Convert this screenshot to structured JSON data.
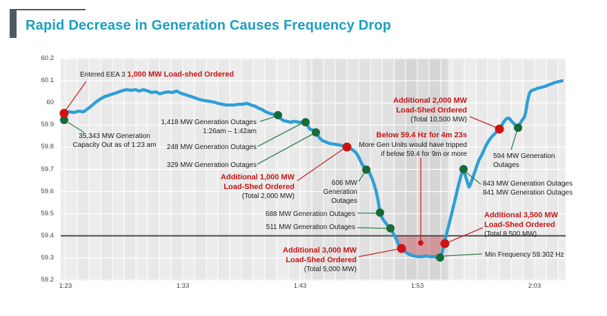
{
  "title": "Rapid Decrease in Generation Causes Frequency Drop",
  "colors": {
    "title_text": "#1a9fc0",
    "accent_bar": "#4d5a63",
    "curve": "#2e9fd6",
    "red": "#c81414",
    "red_dot": "#cf1212",
    "green_dot": "#186a38",
    "green_line": "#2e7d46",
    "red_line": "#cc2222",
    "threshold": "#4c4c4c",
    "below_region_fill": "rgba(198,60,68,0.40)",
    "plot_bg": "#ececec"
  },
  "chart_data": {
    "type": "line",
    "title": "Rapid Decrease in Generation Causes Frequency Drop",
    "xlabel": "",
    "ylabel": "",
    "x_time_origin": "1:23",
    "x_minutes_span": [
      0,
      42.6
    ],
    "ylim": [
      59.2,
      60.2
    ],
    "grid": true,
    "legend": false,
    "x_ticks": [
      {
        "label": "1:23",
        "t": 0
      },
      {
        "label": "1:33",
        "t": 10
      },
      {
        "label": "1:43",
        "t": 20
      },
      {
        "label": "1:53",
        "t": 30
      },
      {
        "label": "2:03",
        "t": 40
      }
    ],
    "y_ticks": [
      {
        "label": "60.2",
        "value": 60.2
      },
      {
        "label": "60.1",
        "value": 60.1
      },
      {
        "label": "60",
        "value": 60.0
      },
      {
        "label": "59.9",
        "value": 59.9
      },
      {
        "label": "59.8",
        "value": 59.8
      },
      {
        "label": "59.7",
        "value": 59.7
      },
      {
        "label": "59.6",
        "value": 59.6
      },
      {
        "label": "59.5",
        "value": 59.5
      },
      {
        "label": "59.4",
        "value": 59.4
      },
      {
        "label": "59.3",
        "value": 59.3
      },
      {
        "label": "59.2",
        "value": 59.2
      }
    ],
    "threshold_hz": 59.4,
    "below_region": {
      "t_start": 28.2,
      "t_end": 32.45
    },
    "min_frequency_hz": 59.302,
    "series": [
      {
        "name": "System Frequency (Hz)",
        "points": [
          [
            -0.18,
            59.957
          ],
          [
            0.29,
            59.96
          ],
          [
            0.71,
            59.957
          ],
          [
            1.12,
            59.963
          ],
          [
            1.53,
            59.96
          ],
          [
            1.88,
            59.973
          ],
          [
            2.24,
            59.988
          ],
          [
            2.59,
            60.004
          ],
          [
            3.0,
            60.019
          ],
          [
            3.35,
            60.029
          ],
          [
            3.71,
            60.035
          ],
          [
            4.06,
            60.041
          ],
          [
            4.41,
            60.047
          ],
          [
            4.76,
            60.054
          ],
          [
            5.18,
            60.06
          ],
          [
            5.59,
            60.057
          ],
          [
            5.94,
            60.06
          ],
          [
            6.29,
            60.054
          ],
          [
            6.65,
            60.06
          ],
          [
            7.0,
            60.054
          ],
          [
            7.35,
            60.047
          ],
          [
            7.71,
            60.05
          ],
          [
            8.06,
            60.041
          ],
          [
            8.41,
            60.047
          ],
          [
            8.76,
            60.05
          ],
          [
            9.12,
            60.047
          ],
          [
            9.47,
            60.054
          ],
          [
            9.82,
            60.044
          ],
          [
            10.18,
            60.038
          ],
          [
            10.53,
            60.032
          ],
          [
            10.88,
            60.026
          ],
          [
            11.24,
            60.019
          ],
          [
            11.59,
            60.013
          ],
          [
            11.94,
            60.01
          ],
          [
            12.29,
            60.007
          ],
          [
            12.65,
            60.004
          ],
          [
            13.0,
            59.998
          ],
          [
            13.35,
            59.994
          ],
          [
            13.71,
            59.991
          ],
          [
            14.06,
            59.991
          ],
          [
            14.41,
            59.991
          ],
          [
            14.76,
            59.994
          ],
          [
            15.12,
            59.994
          ],
          [
            15.47,
            59.998
          ],
          [
            15.82,
            59.991
          ],
          [
            16.18,
            59.985
          ],
          [
            16.47,
            59.976
          ],
          [
            16.76,
            59.97
          ],
          [
            17.06,
            59.96
          ],
          [
            17.35,
            59.954
          ],
          [
            17.71,
            59.948
          ],
          [
            18.12,
            59.945
          ],
          [
            18.35,
            59.929
          ],
          [
            18.59,
            59.92
          ],
          [
            18.88,
            59.917
          ],
          [
            19.18,
            59.913
          ],
          [
            19.53,
            59.917
          ],
          [
            19.88,
            59.913
          ],
          [
            20.18,
            59.913
          ],
          [
            20.47,
            59.913
          ],
          [
            20.65,
            59.898
          ],
          [
            20.82,
            59.882
          ],
          [
            21.0,
            59.879
          ],
          [
            21.24,
            59.873
          ],
          [
            21.35,
            59.867
          ],
          [
            21.53,
            59.851
          ],
          [
            21.71,
            59.839
          ],
          [
            21.94,
            59.829
          ],
          [
            22.24,
            59.823
          ],
          [
            22.53,
            59.817
          ],
          [
            22.88,
            59.814
          ],
          [
            23.24,
            59.811
          ],
          [
            23.53,
            59.808
          ],
          [
            23.76,
            59.804
          ],
          [
            24.0,
            59.801
          ],
          [
            24.29,
            59.795
          ],
          [
            24.53,
            59.786
          ],
          [
            24.76,
            59.776
          ],
          [
            24.94,
            59.761
          ],
          [
            25.12,
            59.742
          ],
          [
            25.29,
            59.723
          ],
          [
            25.47,
            59.711
          ],
          [
            25.65,
            59.702
          ],
          [
            25.76,
            59.699
          ],
          [
            25.94,
            59.683
          ],
          [
            26.12,
            59.661
          ],
          [
            26.29,
            59.636
          ],
          [
            26.47,
            59.605
          ],
          [
            26.65,
            59.561
          ],
          [
            26.82,
            59.505
          ],
          [
            26.94,
            59.487
          ],
          [
            27.12,
            59.471
          ],
          [
            27.29,
            59.459
          ],
          [
            27.47,
            59.446
          ],
          [
            27.71,
            59.434
          ],
          [
            27.88,
            59.418
          ],
          [
            28.06,
            59.399
          ],
          [
            28.24,
            59.381
          ],
          [
            28.41,
            59.359
          ],
          [
            28.59,
            59.346
          ],
          [
            28.71,
            59.34
          ],
          [
            28.88,
            59.331
          ],
          [
            29.12,
            59.322
          ],
          [
            29.35,
            59.315
          ],
          [
            29.71,
            59.309
          ],
          [
            30.06,
            59.306
          ],
          [
            30.41,
            59.306
          ],
          [
            30.76,
            59.309
          ],
          [
            31.12,
            59.306
          ],
          [
            31.47,
            59.306
          ],
          [
            31.71,
            59.303
          ],
          [
            31.94,
            59.302
          ],
          [
            32.12,
            59.324
          ],
          [
            32.24,
            59.352
          ],
          [
            32.35,
            59.377
          ],
          [
            32.47,
            59.402
          ],
          [
            32.59,
            59.43
          ],
          [
            32.76,
            59.464
          ],
          [
            32.94,
            59.502
          ],
          [
            33.12,
            59.542
          ],
          [
            33.29,
            59.579
          ],
          [
            33.47,
            59.62
          ],
          [
            33.65,
            59.657
          ],
          [
            33.82,
            59.688
          ],
          [
            33.94,
            59.701
          ],
          [
            34.06,
            59.679
          ],
          [
            34.18,
            59.657
          ],
          [
            34.29,
            59.638
          ],
          [
            34.41,
            59.62
          ],
          [
            34.53,
            59.632
          ],
          [
            34.71,
            59.66
          ],
          [
            34.88,
            59.685
          ],
          [
            35.06,
            59.713
          ],
          [
            35.24,
            59.741
          ],
          [
            35.41,
            59.757
          ],
          [
            35.59,
            59.776
          ],
          [
            35.82,
            59.804
          ],
          [
            36.06,
            59.826
          ],
          [
            36.29,
            59.844
          ],
          [
            36.53,
            59.857
          ],
          [
            36.76,
            59.869
          ],
          [
            37.0,
            59.882
          ],
          [
            37.18,
            59.897
          ],
          [
            37.35,
            59.913
          ],
          [
            37.53,
            59.925
          ],
          [
            37.71,
            59.932
          ],
          [
            37.88,
            59.929
          ],
          [
            38.06,
            59.916
          ],
          [
            38.24,
            59.907
          ],
          [
            38.41,
            59.897
          ],
          [
            38.59,
            59.888
          ],
          [
            38.76,
            59.907
          ],
          [
            38.94,
            59.922
          ],
          [
            39.12,
            59.935
          ],
          [
            39.24,
            59.957
          ],
          [
            39.35,
            59.994
          ],
          [
            39.47,
            60.025
          ],
          [
            39.59,
            60.047
          ],
          [
            39.76,
            60.057
          ],
          [
            40.0,
            60.06
          ],
          [
            40.24,
            60.066
          ],
          [
            40.47,
            60.069
          ],
          [
            40.71,
            60.072
          ],
          [
            40.94,
            60.075
          ],
          [
            41.18,
            60.082
          ],
          [
            41.41,
            60.085
          ],
          [
            41.65,
            60.091
          ],
          [
            41.88,
            60.094
          ],
          [
            42.12,
            60.097
          ],
          [
            42.35,
            60.1
          ]
        ]
      }
    ],
    "events_red": [
      {
        "t": -0.12,
        "hz": 59.953,
        "label": "Entered EEA 3 1,000 MW Load-shed Ordered"
      },
      {
        "t": 24.0,
        "hz": 59.801,
        "label": "Additional 1,000 MW Load-Shed Ordered (Total 2,000 MW)"
      },
      {
        "t": 28.65,
        "hz": 59.343,
        "label": "Additional 3,000 MW Load-Shed Ordered (Total 5,000 MW)"
      },
      {
        "t": 30.29,
        "hz": 59.368,
        "label": "Below 59.4 Hz for 4m 23s",
        "size": "small"
      },
      {
        "t": 32.35,
        "hz": 59.365,
        "label": "Additional 3,500 MW Load-Shed Ordered (Total 8,500 MW)"
      },
      {
        "t": 37.0,
        "hz": 59.882,
        "label": "Additional 2,000 MW Load-Shed Ordered (Total 10,500 MW)"
      }
    ],
    "events_green": [
      {
        "t": -0.12,
        "hz": 59.923,
        "label": "35,343 MW Generation Capacity Out as of 1:23 am"
      },
      {
        "t": 18.12,
        "hz": 59.945,
        "label": "1,418 MW Generation Outages 1:26am – 1:42am"
      },
      {
        "t": 20.47,
        "hz": 59.913,
        "label": "248 MW Generation Outages"
      },
      {
        "t": 21.35,
        "hz": 59.867,
        "label": "329 MW Generation Outages"
      },
      {
        "t": 25.65,
        "hz": 59.699,
        "label": "606 MW Generation Outages"
      },
      {
        "t": 26.82,
        "hz": 59.505,
        "label": "688 MW Generation Outages"
      },
      {
        "t": 27.71,
        "hz": 59.434,
        "label": "511 MW Generation Outages"
      },
      {
        "t": 31.94,
        "hz": 59.302,
        "label": "Min Frequency 59.302 Hz"
      },
      {
        "t": 33.94,
        "hz": 59.701,
        "label": "843 MW Generation Outages / 841 MW Generation Outages"
      },
      {
        "t": 38.59,
        "hz": 59.888,
        "label": "594 MW Generation Outages"
      }
    ]
  },
  "annotations": {
    "a1": {
      "black": "Entered EEA 3 ",
      "red": "1,000 MW Load-shed Ordered"
    },
    "a2": {
      "l1": "35,343 MW Generation",
      "l2": "Capacity Out as of 1:23 am"
    },
    "a3": {
      "l1": "1,418 MW Generation Outages",
      "l2": "1:26am – 1:42am"
    },
    "a4": {
      "l1": "248 MW Generation Outages"
    },
    "a5": {
      "l1": "329 MW Generation Outages"
    },
    "a6": {
      "r1": "Additional 1,000 MW",
      "r2": "Load-Shed Ordered",
      "b1": "(Total 2,000 MW)"
    },
    "a7": {
      "l1": "606 MW",
      "l2": "Generation",
      "l3": "Outages"
    },
    "a8": {
      "l1": "688 MW Generation Outages"
    },
    "a9": {
      "l1": "511 MW Generation Outages"
    },
    "a10": {
      "r1": "Additional 3,000 MW",
      "r2": "Load-Shed Ordered",
      "b1": "(Total 5,000 MW)"
    },
    "a11": {
      "r1": "Below 59.4 Hz for 4m 23s",
      "b1": "More Gen Units would have tripped",
      "b2": "if below 59.4 for 9m or more"
    },
    "a12": {
      "r1": "Additional 2,000 MW",
      "r2": "Load-Shed Ordered",
      "b1": "(Total 10,500 MW)"
    },
    "a13": {
      "l1": "594 MW Generation",
      "l2": "Outages"
    },
    "a14": {
      "l1": "843 MW Generation Outages",
      "l2": "841 MW Generation Outages"
    },
    "a15": {
      "r1": "Additional 3,500 MW",
      "r2": "Load-Shed Ordered",
      "b1": "(Total 8,500 MW)"
    },
    "a16": {
      "l1": "Min Frequency 59.302 Hz"
    }
  }
}
